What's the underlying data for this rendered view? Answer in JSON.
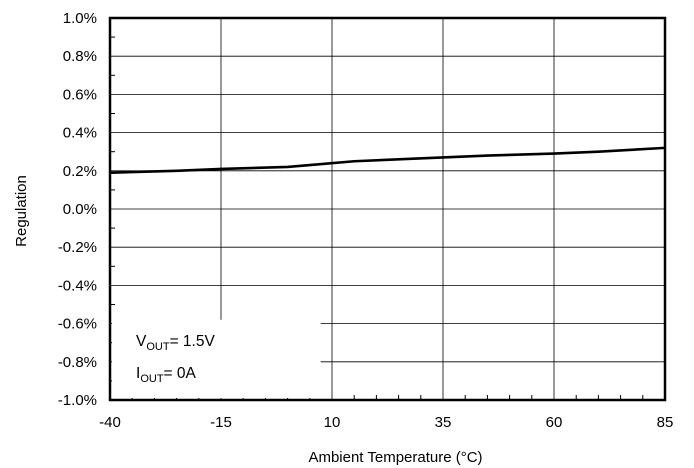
{
  "chart_data": {
    "type": "line",
    "title": "",
    "xlabel": "Ambient Temperature (°C)",
    "ylabel": "Regulation",
    "xlim": [
      -40,
      85
    ],
    "ylim": [
      -1.0,
      1.0
    ],
    "x_ticks": [
      -40,
      -15,
      10,
      35,
      60,
      85
    ],
    "x_tick_labels": [
      "-40",
      "-15",
      "10",
      "35",
      "60",
      "85"
    ],
    "y_ticks": [
      1.0,
      0.8,
      0.6,
      0.4,
      0.2,
      0.0,
      -0.2,
      -0.4,
      -0.6,
      -0.8,
      -1.0
    ],
    "y_tick_labels": [
      "1.0%",
      "0.8%",
      "0.6%",
      "0.4%",
      "0.2%",
      "0.0%",
      "-0.2%",
      "-0.4%",
      "-0.6%",
      "-0.8%",
      "-1.0%"
    ],
    "grid": true,
    "series": [
      {
        "x": [
          -40,
          -25,
          -15,
          0,
          5,
          15,
          25,
          35,
          45,
          60,
          70,
          85
        ],
        "values": [
          0.19,
          0.2,
          0.21,
          0.22,
          0.23,
          0.25,
          0.26,
          0.27,
          0.28,
          0.29,
          0.3,
          0.32
        ],
        "color": "#000000"
      }
    ],
    "annotation": {
      "lines": [
        {
          "base": "V",
          "sub": "OUT",
          "rest": "= 1.5V"
        },
        {
          "base": "I",
          "sub": "OUT",
          "rest": "= 0A"
        }
      ]
    }
  }
}
